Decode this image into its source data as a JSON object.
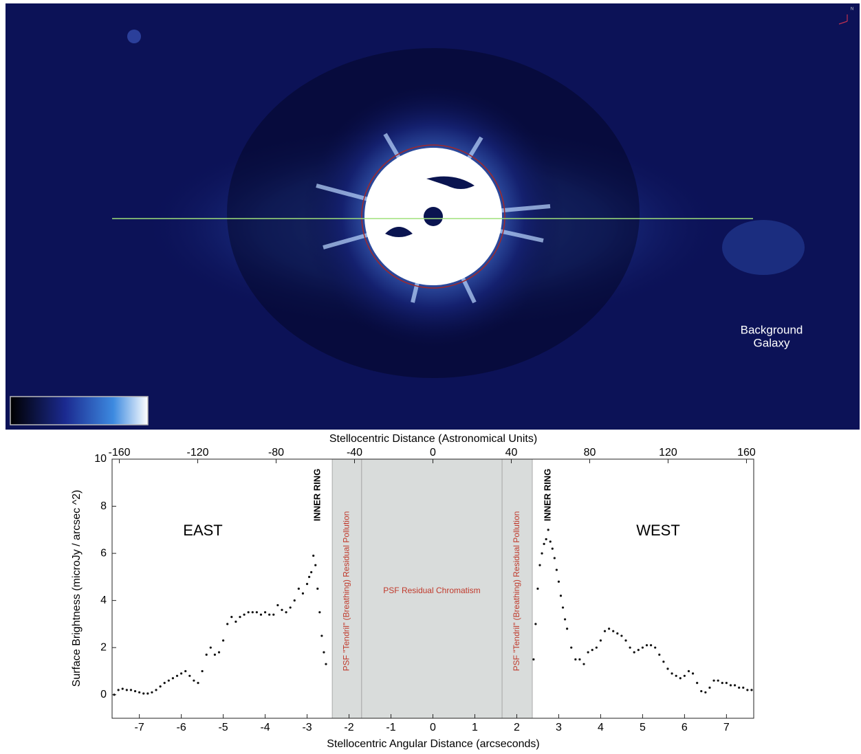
{
  "image": {
    "annotation": [
      "Background",
      "Galaxy"
    ],
    "compass": "N"
  },
  "chart_data": {
    "type": "scatter",
    "xlabel": "Stellocentric Angular Distance (arcseconds)",
    "x2label": "Stellocentric Distance (Astronomical Units)",
    "ylabel": "Surface Brightness (microJy / arcsec ^2)",
    "xlim": [
      -7.65,
      7.65
    ],
    "xticks": [
      -7,
      -6,
      -5,
      -4,
      -3,
      -2,
      -1,
      0,
      1,
      2,
      3,
      4,
      5,
      6,
      7
    ],
    "x2lim": [
      -163.7,
      163.7
    ],
    "x2ticks": [
      -160,
      -120,
      -80,
      -40,
      0,
      40,
      80,
      120,
      160
    ],
    "ylim": [
      -1.0,
      10
    ],
    "yticks": [
      0,
      2,
      4,
      6,
      8,
      10
    ],
    "color": "#111111",
    "bands": [
      {
        "x": [
          -2.4,
          -1.7
        ],
        "label": "PSF \"Tendril\" (Breathing) Residual Pollution"
      },
      {
        "x": [
          -1.7,
          1.65
        ],
        "label": "PSF Residual Chromatism"
      },
      {
        "x": [
          1.65,
          2.37
        ],
        "label": "PSF \"Tendril\" (Breathing) Residual Pollution"
      }
    ],
    "band_color": "#d9dcdb",
    "band_text_color": "#c0392b",
    "annotations": [
      "EAST",
      "WEST",
      "INNER RING",
      "INNER RING"
    ],
    "x": [
      -7.6,
      -7.5,
      -7.4,
      -7.3,
      -7.2,
      -7.1,
      -7.0,
      -6.9,
      -6.8,
      -6.7,
      -6.6,
      -6.5,
      -6.4,
      -6.3,
      -6.2,
      -6.1,
      -6.0,
      -5.9,
      -5.8,
      -5.7,
      -5.6,
      -5.5,
      -5.4,
      -5.3,
      -5.2,
      -5.1,
      -5.0,
      -4.9,
      -4.8,
      -4.7,
      -4.6,
      -4.5,
      -4.4,
      -4.3,
      -4.2,
      -4.1,
      -4.0,
      -3.9,
      -3.8,
      -3.7,
      -3.6,
      -3.5,
      -3.4,
      -3.3,
      -3.2,
      -3.1,
      -3.0,
      -2.95,
      -2.9,
      -2.85,
      -2.8,
      -2.75,
      -2.7,
      -2.65,
      -2.6,
      -2.55,
      2.4,
      2.45,
      2.5,
      2.55,
      2.6,
      2.65,
      2.7,
      2.75,
      2.8,
      2.85,
      2.9,
      2.95,
      3.0,
      3.05,
      3.1,
      3.15,
      3.2,
      3.3,
      3.4,
      3.5,
      3.6,
      3.7,
      3.8,
      3.9,
      4.0,
      4.1,
      4.2,
      4.3,
      4.4,
      4.5,
      4.6,
      4.7,
      4.8,
      4.9,
      5.0,
      5.1,
      5.2,
      5.3,
      5.4,
      5.5,
      5.6,
      5.7,
      5.8,
      5.9,
      6.0,
      6.1,
      6.2,
      6.3,
      6.4,
      6.5,
      6.6,
      6.7,
      6.8,
      6.9,
      7.0,
      7.1,
      7.2,
      7.3,
      7.4,
      7.5,
      7.6
    ],
    "values": [
      0.0,
      0.2,
      0.25,
      0.2,
      0.2,
      0.15,
      0.1,
      0.05,
      0.05,
      0.1,
      0.2,
      0.35,
      0.5,
      0.6,
      0.7,
      0.8,
      0.9,
      1.0,
      0.8,
      0.6,
      0.5,
      1.0,
      1.7,
      2.0,
      1.7,
      1.8,
      2.3,
      3.0,
      3.3,
      3.1,
      3.3,
      3.4,
      3.5,
      3.5,
      3.5,
      3.4,
      3.5,
      3.4,
      3.4,
      3.8,
      3.6,
      3.5,
      3.7,
      4.0,
      4.5,
      4.3,
      4.7,
      5.0,
      5.2,
      5.9,
      5.5,
      4.5,
      3.5,
      2.5,
      1.8,
      1.3,
      1.5,
      3.0,
      4.5,
      5.5,
      6.0,
      6.4,
      6.6,
      7.0,
      6.5,
      6.2,
      5.8,
      5.3,
      4.8,
      4.2,
      3.7,
      3.2,
      2.8,
      2.0,
      1.5,
      1.5,
      1.3,
      1.8,
      1.9,
      2.0,
      2.3,
      2.7,
      2.8,
      2.7,
      2.6,
      2.5,
      2.3,
      2.0,
      1.8,
      1.9,
      2.0,
      2.1,
      2.1,
      2.0,
      1.7,
      1.4,
      1.1,
      0.9,
      0.8,
      0.7,
      0.8,
      1.0,
      0.9,
      0.5,
      0.15,
      0.1,
      0.3,
      0.6,
      0.6,
      0.5,
      0.5,
      0.4,
      0.4,
      0.3,
      0.3,
      0.2,
      0.2
    ]
  }
}
